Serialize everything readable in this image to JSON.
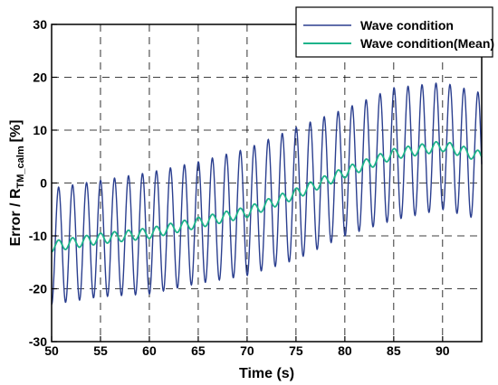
{
  "chart_data": {
    "type": "line",
    "xlabel": "Time (s)",
    "ylabel_main": "Error / R",
    "ylabel_sub": "TM_calm",
    "ylabel_unit": "[%]",
    "xlim": [
      50,
      94
    ],
    "ylim": [
      -30,
      30
    ],
    "xticks": [
      50,
      55,
      60,
      65,
      70,
      75,
      80,
      85,
      90
    ],
    "yticks": [
      -30,
      -20,
      -10,
      0,
      10,
      20,
      30
    ],
    "grid": "dashed",
    "legend_position": "top-right",
    "series": [
      {
        "name": "Wave condition",
        "color": "#2b3f8f",
        "kind": "oscillating",
        "period_s": 1.43,
        "mean_points": [
          [
            50,
            -12
          ],
          [
            55,
            -10.5
          ],
          [
            60,
            -9.5
          ],
          [
            65,
            -7.5
          ],
          [
            70,
            -5.5
          ],
          [
            75,
            -2
          ],
          [
            80,
            2
          ],
          [
            85,
            5.5
          ],
          [
            90,
            7
          ],
          [
            94,
            5
          ]
        ],
        "amplitude_points": [
          [
            50,
            11
          ],
          [
            55,
            11
          ],
          [
            60,
            11.5
          ],
          [
            65,
            11.5
          ],
          [
            70,
            12
          ],
          [
            75,
            12.5
          ],
          [
            80,
            12
          ],
          [
            85,
            12.5
          ],
          [
            90,
            12
          ],
          [
            94,
            12
          ]
        ]
      },
      {
        "name": "Wave condition(Mean)",
        "color": "#1db38a",
        "kind": "oscillating",
        "period_s": 1.43,
        "mean_points": [
          [
            50,
            -12
          ],
          [
            55,
            -10.5
          ],
          [
            60,
            -9.5
          ],
          [
            65,
            -7.5
          ],
          [
            70,
            -5.5
          ],
          [
            75,
            -2
          ],
          [
            80,
            2
          ],
          [
            85,
            5.5
          ],
          [
            90,
            7
          ],
          [
            94,
            5
          ]
        ],
        "amplitude_points": [
          [
            50,
            1
          ],
          [
            94,
            1
          ]
        ]
      }
    ]
  }
}
